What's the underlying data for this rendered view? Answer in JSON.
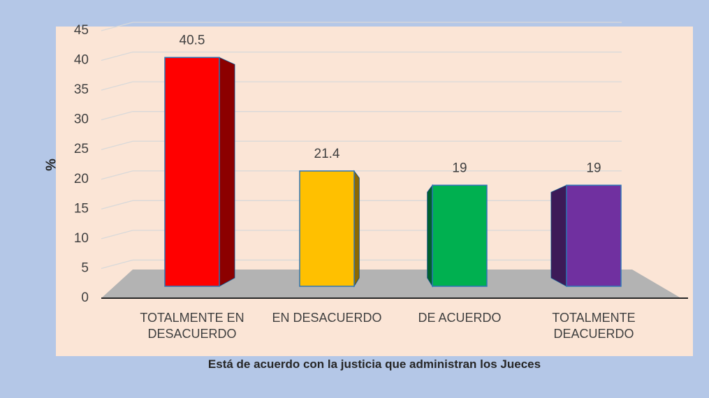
{
  "chart_data": {
    "type": "bar3d",
    "categories": [
      "TOTALMENTE EN DESACUERDO",
      "EN DESACUERDO",
      "DE ACUERDO",
      "TOTALMENTE DEACUERDO"
    ],
    "values": [
      40.5,
      21.4,
      19,
      19
    ],
    "colors": [
      "#ff0000",
      "#ffc000",
      "#00b050",
      "#7030a0"
    ],
    "y_label": "%",
    "x_label": "Está de acuerdo con la justicia que administran los Jueces",
    "ylim": [
      0,
      45
    ],
    "yticks": [
      0,
      5,
      10,
      15,
      20,
      25,
      30,
      35,
      40,
      45
    ],
    "grid": true
  }
}
